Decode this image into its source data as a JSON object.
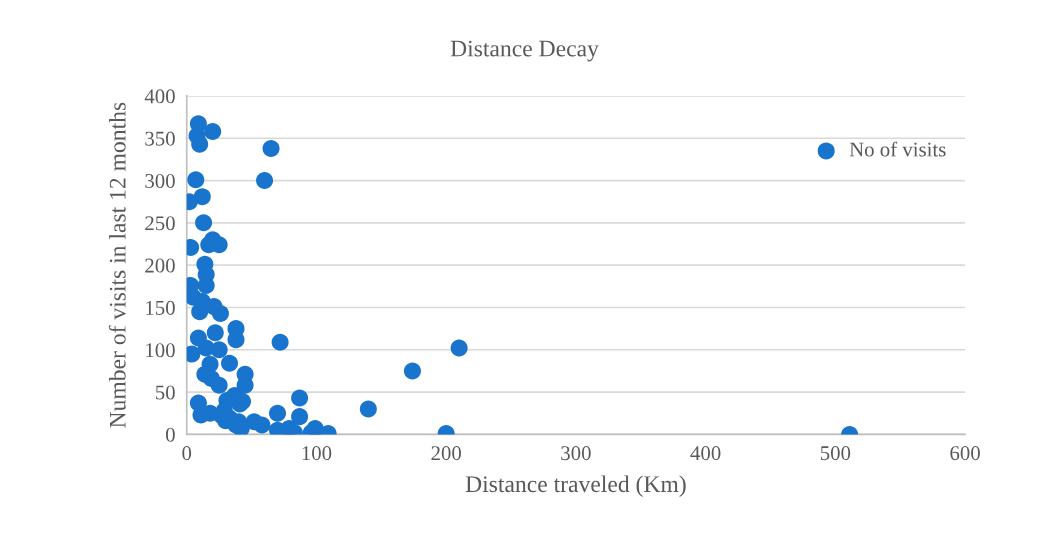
{
  "chart_data": {
    "type": "scatter",
    "title": "Distance Decay",
    "xlabel": "Distance traveled (Km)",
    "ylabel": "Number of visits in last 12 months",
    "xlim": [
      0,
      600
    ],
    "xticks": [
      0,
      100,
      200,
      300,
      400,
      500,
      600
    ],
    "ylim": [
      0,
      400
    ],
    "yticks": [
      0,
      50,
      100,
      150,
      200,
      250,
      300,
      350,
      400
    ],
    "grid": "y",
    "legend": "top right",
    "marker": "circle",
    "series": [
      {
        "name": "No of visits",
        "color": "#1874cd",
        "x": [
          9,
          8,
          10,
          20,
          65,
          60,
          7,
          2,
          12,
          13,
          3,
          17,
          20,
          25,
          14,
          15,
          15,
          3,
          5,
          12,
          21,
          26,
          10,
          9,
          22,
          38,
          38,
          72,
          4,
          15,
          25,
          33,
          18,
          14,
          19,
          45,
          45,
          25,
          31,
          9,
          41,
          11,
          18,
          33,
          40,
          52,
          58,
          87,
          70,
          87,
          70,
          79,
          83,
          99,
          96,
          109,
          140,
          174,
          210,
          200,
          511,
          29,
          37,
          43,
          38,
          30,
          42,
          27
        ],
        "values": [
          367,
          353,
          343,
          358,
          338,
          300,
          301,
          275,
          281,
          250,
          221,
          224,
          230,
          224,
          201,
          189,
          176,
          176,
          162,
          157,
          151,
          143,
          145,
          114,
          120,
          125,
          112,
          109,
          95,
          102,
          100,
          84,
          83,
          71,
          66,
          71,
          58,
          58,
          40,
          37,
          36,
          23,
          25,
          19,
          15,
          15,
          11,
          43,
          25,
          21,
          5,
          7,
          2,
          7,
          2,
          1,
          30,
          75,
          102,
          1,
          0,
          28,
          46,
          39,
          11,
          16,
          7,
          22
        ]
      }
    ]
  }
}
